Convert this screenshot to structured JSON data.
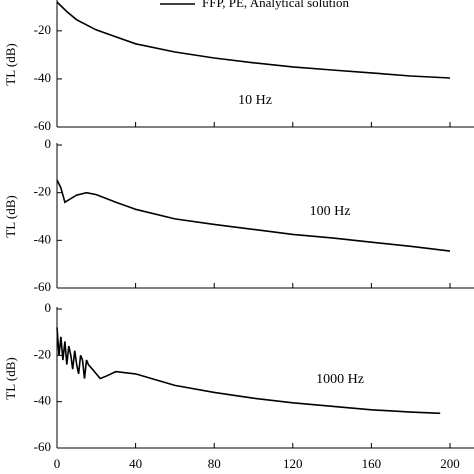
{
  "chart_data": [
    {
      "type": "line",
      "annotation": "10 Hz",
      "ylabel": "TL (dB)",
      "ylim": [
        -60,
        -8
      ],
      "yticks": [
        -20,
        -40,
        -60
      ],
      "x": [
        0,
        5,
        10,
        20,
        40,
        60,
        80,
        100,
        120,
        140,
        160,
        180,
        200
      ],
      "series": [
        {
          "name": "FFP, PE, Analytical solution",
          "color": "#000000",
          "values": [
            -8,
            -12,
            -15.4,
            -19.6,
            -25.4,
            -28.8,
            -31.3,
            -33.3,
            -35,
            -36.3,
            -37.5,
            -38.8,
            -39.6
          ]
        }
      ]
    },
    {
      "type": "line",
      "annotation": "100 Hz",
      "ylabel": "TL (dB)",
      "ylim": [
        -60,
        0
      ],
      "yticks": [
        0,
        -20,
        -40,
        -60
      ],
      "x": [
        0,
        2,
        4,
        6,
        10,
        15,
        20,
        30,
        40,
        60,
        80,
        100,
        120,
        140,
        160,
        180,
        200
      ],
      "series": [
        {
          "color": "#000000",
          "values": [
            -14.6,
            -18,
            -24,
            -23,
            -21,
            -20,
            -20.8,
            -24,
            -27,
            -31,
            -33.3,
            -35.4,
            -37.5,
            -39,
            -40.8,
            -42.5,
            -44.5
          ]
        }
      ]
    },
    {
      "type": "line",
      "annotation": "1000 Hz",
      "ylabel": "TL (dB)",
      "ylim": [
        -60,
        0
      ],
      "yticks": [
        0,
        -20,
        -40,
        -60
      ],
      "xlim": [
        0,
        200
      ],
      "xticks": [
        0,
        40,
        80,
        120,
        160,
        200
      ],
      "x": [
        0,
        1,
        2,
        3,
        4,
        5,
        6,
        7,
        8,
        9,
        10,
        11,
        12,
        13,
        14,
        15,
        16,
        18,
        20,
        22,
        25,
        30,
        40,
        60,
        80,
        100,
        120,
        140,
        160,
        180,
        195
      ],
      "series": [
        {
          "color": "#000000",
          "values": [
            -8,
            -20,
            -12,
            -22,
            -14,
            -24,
            -16,
            -20,
            -26,
            -18,
            -24,
            -28,
            -20,
            -22,
            -30,
            -22,
            -24,
            -26,
            -28,
            -30,
            -29,
            -27,
            -28,
            -33,
            -36,
            -38.5,
            -40.5,
            -42,
            -43.5,
            -44.5,
            -45
          ]
        }
      ]
    }
  ]
}
